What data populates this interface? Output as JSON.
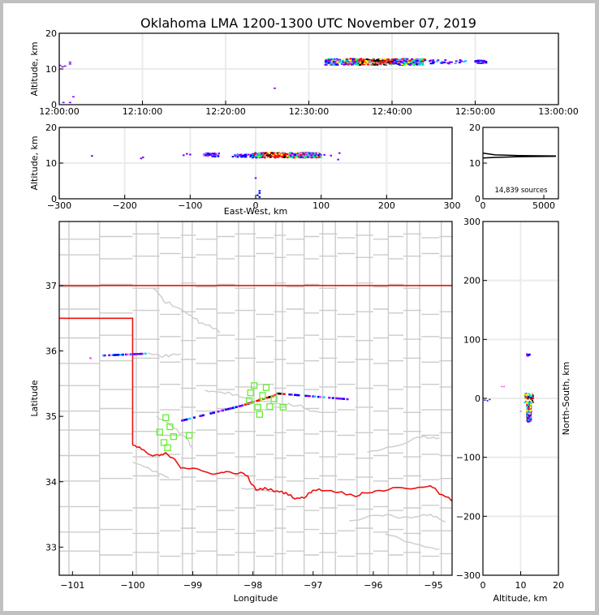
{
  "title": "Oklahoma LMA 1200-1300 UTC November 07, 2019",
  "colors": {
    "grid": "#ebebeb",
    "county": "#cccccc",
    "state": "#ee1111",
    "station": "#66ee33",
    "palette": [
      "#7a00ff",
      "#0000ff",
      "#00ccff",
      "#00ff66",
      "#ffff00",
      "#ff0000",
      "#000000",
      "#ff44ff",
      "#999999"
    ]
  },
  "chart_data": [
    {
      "name": "time-height",
      "type": "scatter",
      "title": "Oklahoma LMA 1200-1300 UTC November 07, 2019",
      "xlabel": "",
      "ylabel": "Altitude, km",
      "xlim": [
        "12:00:00",
        "13:00:00"
      ],
      "xlim_minutes": [
        0,
        60
      ],
      "ylim": [
        0,
        20
      ],
      "xticks": [
        "12:00:00",
        "12:10:00",
        "12:20:00",
        "12:30:00",
        "12:40:00",
        "12:50:00",
        "13:00:00"
      ],
      "yticks": [
        "0",
        "10",
        "20"
      ],
      "grid": true,
      "clusters": [
        {
          "t_start_min": 32.0,
          "t_end_min": 44.0,
          "alt_km": 12.0,
          "spread_km": 0.8,
          "density": "high"
        },
        {
          "t_start_min": 44.0,
          "t_end_min": 49.0,
          "alt_km": 12.0,
          "spread_km": 0.5,
          "density": "low"
        },
        {
          "t_start_min": 50.0,
          "t_end_min": 51.3,
          "alt_km": 12.0,
          "spread_km": 0.4,
          "density": "low"
        }
      ],
      "points": [
        {
          "t_min": 0.1,
          "alt_km": 11.0
        },
        {
          "t_min": 0.4,
          "alt_km": 10.6
        },
        {
          "t_min": 0.7,
          "alt_km": 10.8
        },
        {
          "t_min": 1.3,
          "alt_km": 11.4
        },
        {
          "t_min": 1.3,
          "alt_km": 11.9
        },
        {
          "t_min": 1.7,
          "alt_km": 2.2
        },
        {
          "t_min": 0.5,
          "alt_km": 0.6
        },
        {
          "t_min": 1.3,
          "alt_km": 0.6
        },
        {
          "t_min": 25.9,
          "alt_km": 4.6
        }
      ]
    },
    {
      "name": "east-west-height",
      "type": "scatter",
      "xlabel": "East-West, km",
      "ylabel": "Altitude, km",
      "xlim": [
        -300,
        300
      ],
      "ylim": [
        0,
        20
      ],
      "xticks": [
        "−300",
        "−200",
        "−100",
        "0",
        "100",
        "200",
        "300"
      ],
      "yticks": [
        "0",
        "10",
        "20"
      ],
      "grid": true,
      "clusters": [
        {
          "x_start_km": -5,
          "x_end_km": 100,
          "alt_km": 12.2,
          "spread_km": 0.7,
          "density": "high"
        },
        {
          "x_start_km": -80,
          "x_end_km": -55,
          "alt_km": 12.3,
          "spread_km": 0.5,
          "density": "mid"
        },
        {
          "x_start_km": -35,
          "x_end_km": -5,
          "alt_km": 12.0,
          "spread_km": 0.4,
          "density": "mid"
        }
      ],
      "points": [
        {
          "x_km": -250,
          "alt_km": 12.0
        },
        {
          "x_km": -175,
          "alt_km": 11.3
        },
        {
          "x_km": -172,
          "alt_km": 11.6
        },
        {
          "x_km": -110,
          "alt_km": 12.2
        },
        {
          "x_km": -105,
          "alt_km": 12.6
        },
        {
          "x_km": -100,
          "alt_km": 12.4
        },
        {
          "x_km": 105,
          "alt_km": 12.3
        },
        {
          "x_km": 115,
          "alt_km": 12.1
        },
        {
          "x_km": 128,
          "alt_km": 12.8
        },
        {
          "x_km": 126,
          "alt_km": 11.0
        },
        {
          "x_km": 0,
          "alt_km": 5.8
        },
        {
          "x_km": 6,
          "alt_km": 2.2
        },
        {
          "x_km": 6,
          "alt_km": 1.6
        },
        {
          "x_km": 3,
          "alt_km": 1.0
        },
        {
          "x_km": 6,
          "alt_km": 0.5
        }
      ]
    },
    {
      "name": "altitude-histogram",
      "type": "line",
      "xlim": [
        0,
        6200
      ],
      "ylim": [
        0,
        20
      ],
      "xticks": [
        "0",
        "5000"
      ],
      "yticks": [
        "0",
        "10",
        "20"
      ],
      "annotation": "14,839 sources",
      "series": [
        {
          "name": "upper",
          "points": [
            [
              0,
              12.8
            ],
            [
              1000,
              12.3
            ],
            [
              3000,
              12.1
            ],
            [
              6000,
              12.0
            ]
          ]
        },
        {
          "name": "lower",
          "points": [
            [
              0,
              11.4
            ],
            [
              1000,
              11.6
            ],
            [
              3000,
              11.8
            ],
            [
              6000,
              11.9
            ]
          ]
        }
      ]
    },
    {
      "name": "plan-view-map",
      "type": "scatter",
      "xlabel": "Longitude",
      "ylabel": "Latitude",
      "xlim": [
        -101.22,
        -94.69
      ],
      "ylim": [
        32.57,
        37.98
      ],
      "xticks": [
        "−101",
        "−100",
        "−99",
        "−98",
        "−97",
        "−96",
        "−95"
      ],
      "xtick_values": [
        -101,
        -100,
        -99,
        -98,
        -97,
        -96,
        -95
      ],
      "yticks": [
        "33",
        "34",
        "35",
        "36",
        "37"
      ],
      "ytick_values": [
        33,
        34,
        35,
        36,
        37
      ],
      "stations": [
        [
          -99.45,
          34.98
        ],
        [
          -99.38,
          34.84
        ],
        [
          -99.55,
          34.76
        ],
        [
          -99.32,
          34.69
        ],
        [
          -99.06,
          34.71
        ],
        [
          -99.48,
          34.6
        ],
        [
          -99.42,
          34.52
        ],
        [
          -97.98,
          35.47
        ],
        [
          -97.78,
          35.44
        ],
        [
          -98.04,
          35.36
        ],
        [
          -97.84,
          35.32
        ],
        [
          -98.06,
          35.24
        ],
        [
          -97.65,
          35.27
        ],
        [
          -97.92,
          35.14
        ],
        [
          -97.72,
          35.15
        ],
        [
          -97.5,
          35.14
        ],
        [
          -97.89,
          35.03
        ]
      ],
      "flash_tracks": [
        {
          "lon_start": -100.5,
          "lat_start": 35.93,
          "lon_end": -99.75,
          "lat_end": 35.96
        },
        {
          "lon_start": -99.2,
          "lat_start": 34.93,
          "lon_end": -98.2,
          "lat_end": 35.16
        },
        {
          "lon_start": -98.2,
          "lat_start": 35.16,
          "lon_end": -97.6,
          "lat_end": 35.33
        },
        {
          "lon_start": -97.6,
          "lat_start": 35.35,
          "lon_end": -96.4,
          "lat_end": 35.26
        }
      ],
      "isolated_points": [
        [
          -100.7,
          35.89
        ]
      ]
    },
    {
      "name": "north-south-height",
      "type": "scatter",
      "xlabel": "Altitude, km",
      "ylabel": "North-South, km",
      "xlim": [
        0,
        20
      ],
      "ylim": [
        -300,
        300
      ],
      "xticks": [
        "0",
        "10",
        "20"
      ],
      "yticks": [
        "−300",
        "−200",
        "−100",
        "0",
        "100",
        "200",
        "300"
      ],
      "grid": true,
      "clusters": [
        {
          "alt_km": 12.2,
          "y_start_km": -40,
          "y_end_km": 8,
          "spread_km": 1.2,
          "density": "high"
        },
        {
          "alt_km": 12.0,
          "y_start_km": 72,
          "y_end_km": 75,
          "spread_km": 1.0,
          "density": "low"
        }
      ],
      "points": [
        {
          "alt_km": 0.5,
          "y_km": -3
        },
        {
          "alt_km": 1.2,
          "y_km": -4
        },
        {
          "alt_km": 1.8,
          "y_km": -2
        },
        {
          "alt_km": 5.0,
          "y_km": 20
        },
        {
          "alt_km": 5.6,
          "y_km": 20
        },
        {
          "alt_km": 10.0,
          "y_km": -22
        }
      ]
    }
  ]
}
